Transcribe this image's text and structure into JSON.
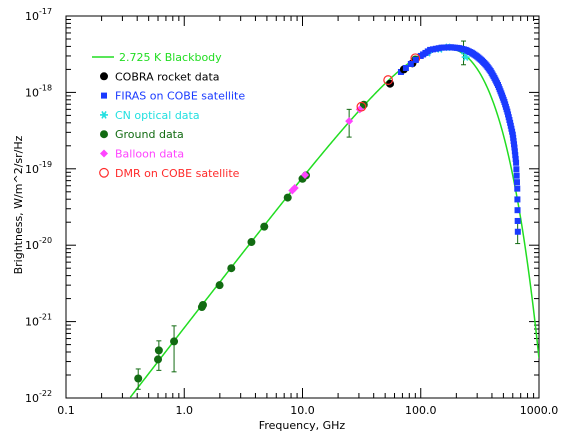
{
  "chart_data": {
    "type": "scatter",
    "title": "",
    "xlabel": "Frequency, GHz",
    "ylabel": "Brightness, W/m^2/sr/Hz",
    "xscale": "log",
    "yscale": "log",
    "xlim": [
      0.1,
      1000.0
    ],
    "ylim": [
      1e-22,
      1e-17
    ],
    "x_ticks": [
      {
        "value": 0.1,
        "label": "0.1"
      },
      {
        "value": 1,
        "label": "1.0"
      },
      {
        "value": 10,
        "label": "10.0"
      },
      {
        "value": 100,
        "label": "100.0"
      },
      {
        "value": 1000,
        "label": "1000.0"
      }
    ],
    "y_ticks": [
      {
        "value": 1e-22,
        "base": "10",
        "exp": "-22"
      },
      {
        "value": 1e-21,
        "base": "10",
        "exp": "-21"
      },
      {
        "value": 1e-20,
        "base": "10",
        "exp": "-20"
      },
      {
        "value": 1e-19,
        "base": "10",
        "exp": "-19"
      },
      {
        "value": 1e-18,
        "base": "10",
        "exp": "-18"
      },
      {
        "value": 1e-17,
        "base": "10",
        "exp": "-17"
      }
    ],
    "grid": false,
    "legend_position": "top-left",
    "series": [
      {
        "name": "2.725 K Blackbody",
        "kind": "line",
        "color": "#22dd22",
        "temperature_K": 2.725,
        "x_range": [
          0.35,
          1000
        ]
      },
      {
        "name": "COBRA rocket data",
        "kind": "marker",
        "marker": "filled-circle",
        "color": "#000000",
        "points": [
          {
            "x": 55,
            "y": 1.3e-18
          },
          {
            "x": 72,
            "y": 2e-18
          },
          {
            "x": 85,
            "y": 2.4e-18
          }
        ]
      },
      {
        "name": "FIRAS on COBE satellite",
        "kind": "marker",
        "marker": "filled-square",
        "color": "#1a3aff",
        "points": [
          {
            "x": 68,
            "y": 1.85e-18
          },
          {
            "x": 100,
            "y": 3e-18
          },
          {
            "x": 120,
            "y": 3.6e-18
          },
          {
            "x": 150,
            "y": 3.85e-18
          },
          {
            "x": 180,
            "y": 3.9e-18
          },
          {
            "x": 210,
            "y": 3.8e-18
          },
          {
            "x": 240,
            "y": 3.6e-18
          },
          {
            "x": 270,
            "y": 3.3e-18
          },
          {
            "x": 300,
            "y": 2.95e-18
          },
          {
            "x": 330,
            "y": 2.6e-18
          },
          {
            "x": 360,
            "y": 2.25e-18
          },
          {
            "x": 390,
            "y": 1.9e-18
          },
          {
            "x": 420,
            "y": 1.55e-18
          },
          {
            "x": 450,
            "y": 1.25e-18
          },
          {
            "x": 480,
            "y": 9.7e-19
          },
          {
            "x": 510,
            "y": 7.5e-19
          },
          {
            "x": 540,
            "y": 5.6e-19
          },
          {
            "x": 570,
            "y": 4e-19
          },
          {
            "x": 600,
            "y": 2.8e-19
          },
          {
            "x": 620,
            "y": 1.9e-19
          },
          {
            "x": 640,
            "y": 1.2e-19
          },
          {
            "x": 655,
            "y": 5.5e-20
          },
          {
            "x": 662,
            "y": 1.5e-20
          }
        ]
      },
      {
        "name": "CN optical data",
        "kind": "marker",
        "marker": "star",
        "color": "#22e0e0",
        "points": [
          {
            "x": 115,
            "y": 3.3e-18
          },
          {
            "x": 145,
            "y": 3.7e-18
          },
          {
            "x": 170,
            "y": 3.9e-18
          },
          {
            "x": 230,
            "y": 3.5e-18
          },
          {
            "x": 240,
            "y": 2.9e-18
          }
        ]
      },
      {
        "name": "Ground data",
        "kind": "marker",
        "marker": "filled-circle",
        "color": "#126b12",
        "points": [
          {
            "x": 0.408,
            "y": 1.8e-22
          },
          {
            "x": 0.6,
            "y": 3.2e-22
          },
          {
            "x": 0.61,
            "y": 4.2e-22
          },
          {
            "x": 0.82,
            "y": 5.5e-22
          },
          {
            "x": 1.41,
            "y": 1.55e-21
          },
          {
            "x": 1.44,
            "y": 1.65e-21
          },
          {
            "x": 1.99,
            "y": 3e-21
          },
          {
            "x": 2.5,
            "y": 5e-21
          },
          {
            "x": 3.7,
            "y": 1.1e-20
          },
          {
            "x": 4.75,
            "y": 1.75e-20
          },
          {
            "x": 7.5,
            "y": 4.2e-20
          },
          {
            "x": 10.0,
            "y": 7.4e-20
          },
          {
            "x": 10.7,
            "y": 8.2e-20
          },
          {
            "x": 33,
            "y": 6.9e-19
          },
          {
            "x": 90,
            "y": 2.7e-18
          }
        ]
      },
      {
        "name": "Balloon data",
        "kind": "marker",
        "marker": "filled-diamond",
        "color": "#ff44ff",
        "points": [
          {
            "x": 8.2,
            "y": 5.2e-20
          },
          {
            "x": 8.6,
            "y": 5.6e-20
          },
          {
            "x": 10.5,
            "y": 8.3e-20
          },
          {
            "x": 24.8,
            "y": 4.2e-19
          },
          {
            "x": 30.5,
            "y": 6e-19
          }
        ]
      },
      {
        "name": "DMR on COBE satellite",
        "kind": "marker",
        "marker": "open-circle",
        "color": "#ff2a2a",
        "points": [
          {
            "x": 31.5,
            "y": 6.5e-19
          },
          {
            "x": 53,
            "y": 1.45e-18
          },
          {
            "x": 90,
            "y": 2.8e-18
          }
        ]
      }
    ],
    "error_bars": [
      {
        "x": 0.408,
        "y_low": 1.3e-22,
        "y_high": 2.4e-22
      },
      {
        "x": 0.61,
        "y_low": 2.3e-22,
        "y_high": 5.6e-22
      },
      {
        "x": 0.82,
        "y_low": 2.2e-22,
        "y_high": 8.8e-22
      },
      {
        "x": 24.8,
        "y_low": 2.6e-19,
        "y_high": 6e-19
      },
      {
        "x": 230,
        "y_low": 2.3e-18,
        "y_high": 4.7e-18
      },
      {
        "x": 660,
        "y_low": 1.05e-20,
        "y_high": 2e-20
      }
    ]
  }
}
